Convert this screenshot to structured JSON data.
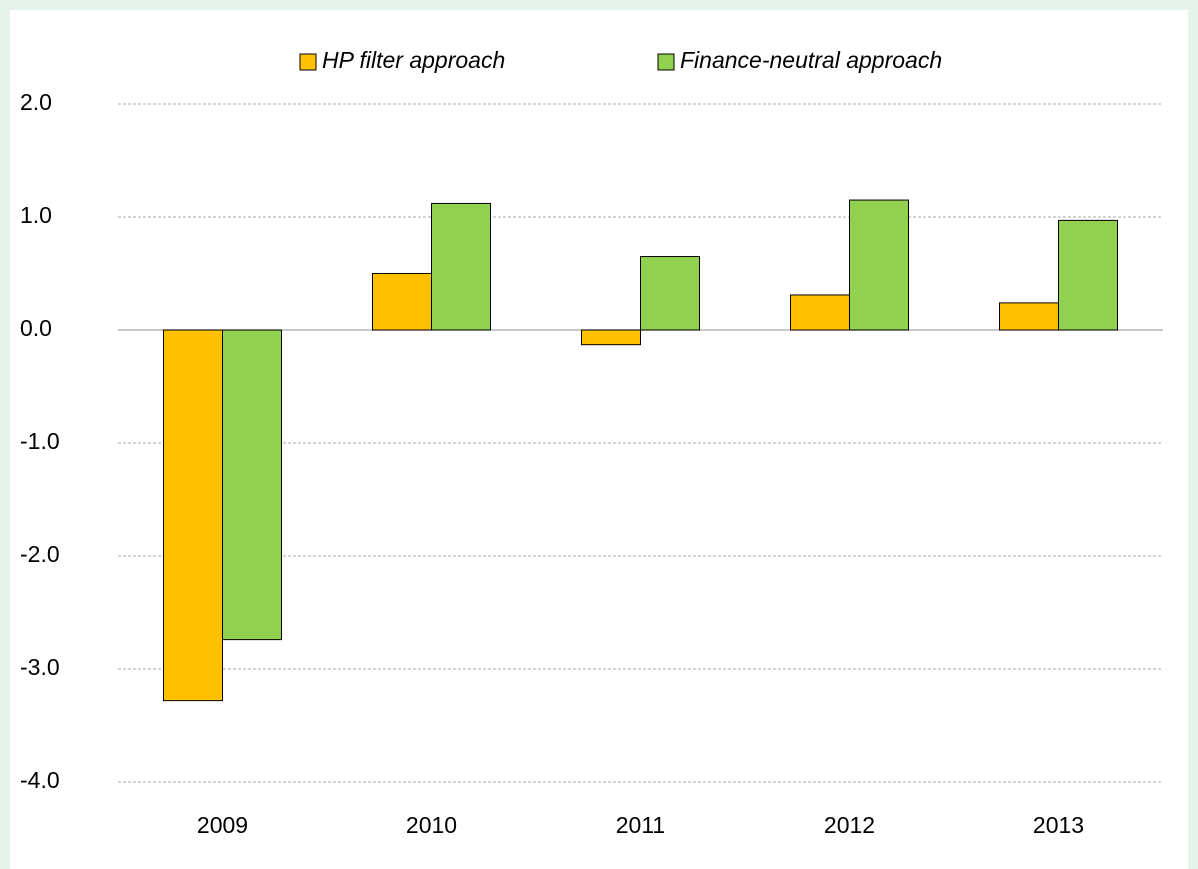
{
  "chart_data": {
    "type": "bar",
    "categories": [
      "2009",
      "2010",
      "2011",
      "2012",
      "2013"
    ],
    "series": [
      {
        "name": "HP filter approach",
        "color": "#ffc000",
        "values": [
          -3.28,
          0.5,
          -0.13,
          0.31,
          0.24
        ]
      },
      {
        "name": "Finance-neutral approach",
        "color": "#92d050",
        "values": [
          -2.74,
          1.12,
          0.65,
          1.15,
          0.97
        ]
      }
    ],
    "ylim": [
      -4,
      2
    ],
    "yticks": [
      {
        "value": -4,
        "label": "-4.0"
      },
      {
        "value": -3,
        "label": "-3.0"
      },
      {
        "value": -2,
        "label": "-2.0"
      },
      {
        "value": -1,
        "label": "-1.0"
      },
      {
        "value": 0,
        "label": "0.0"
      },
      {
        "value": 1,
        "label": "1.0"
      },
      {
        "value": 2,
        "label": "2.0"
      }
    ],
    "grid": true,
    "legend": "top"
  }
}
